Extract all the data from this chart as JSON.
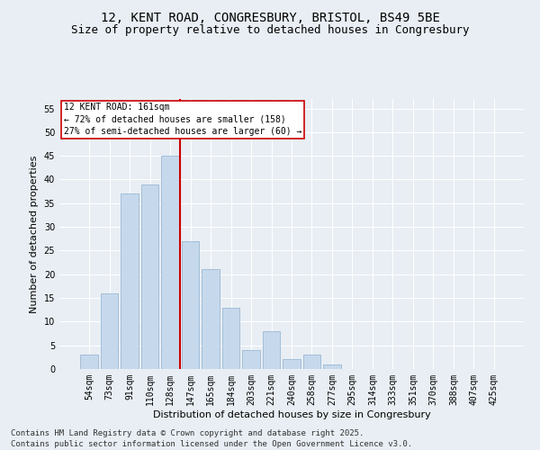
{
  "title_line1": "12, KENT ROAD, CONGRESBURY, BRISTOL, BS49 5BE",
  "title_line2": "Size of property relative to detached houses in Congresbury",
  "xlabel": "Distribution of detached houses by size in Congresbury",
  "ylabel": "Number of detached properties",
  "categories": [
    "54sqm",
    "73sqm",
    "91sqm",
    "110sqm",
    "128sqm",
    "147sqm",
    "165sqm",
    "184sqm",
    "203sqm",
    "221sqm",
    "240sqm",
    "258sqm",
    "277sqm",
    "295sqm",
    "314sqm",
    "333sqm",
    "351sqm",
    "370sqm",
    "388sqm",
    "407sqm",
    "425sqm"
  ],
  "values": [
    3,
    16,
    37,
    39,
    45,
    27,
    21,
    13,
    4,
    8,
    2,
    3,
    1,
    0,
    0,
    0,
    0,
    0,
    0,
    0,
    0
  ],
  "bar_color": "#c6d9ec",
  "bar_edgecolor": "#9bb8d4",
  "vline_color": "#cc0000",
  "vline_x_index": 4.5,
  "annotation_text": "12 KENT ROAD: 161sqm\n← 72% of detached houses are smaller (158)\n27% of semi-detached houses are larger (60) →",
  "annotation_box_edgecolor": "#cc0000",
  "annotation_box_facecolor": "#ffffff",
  "ylim_max": 57,
  "yticks": [
    0,
    5,
    10,
    15,
    20,
    25,
    30,
    35,
    40,
    45,
    50,
    55
  ],
  "footer_line1": "Contains HM Land Registry data © Crown copyright and database right 2025.",
  "footer_line2": "Contains public sector information licensed under the Open Government Licence v3.0.",
  "background_color": "#e8eef4",
  "grid_color": "#ffffff",
  "title_fontsize": 10,
  "subtitle_fontsize": 9,
  "axis_label_fontsize": 8,
  "tick_fontsize": 7,
  "annotation_fontsize": 7,
  "footer_fontsize": 6.5
}
